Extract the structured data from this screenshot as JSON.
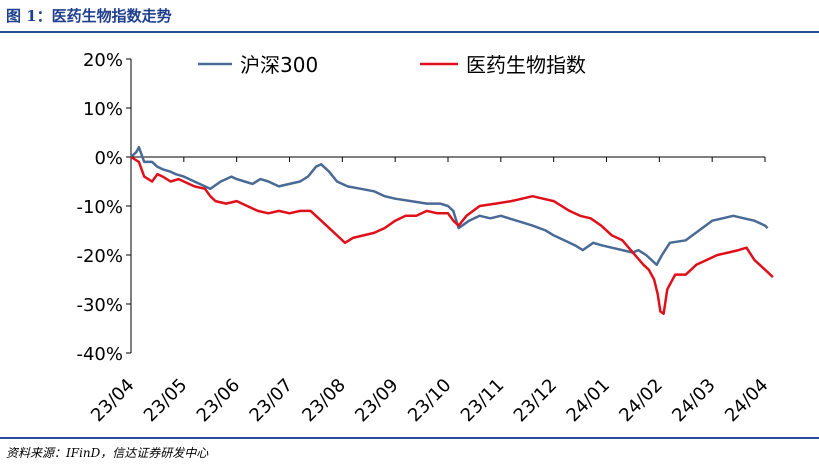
{
  "header": {
    "figure_title": "图 1：医药生物指数走势"
  },
  "footer": {
    "source": "资料来源：IFinD，信达证券研发中心"
  },
  "chart_data": {
    "type": "line",
    "title": "",
    "xlabel": "",
    "ylabel": "",
    "x_ticks": [
      "23/04",
      "23/05",
      "23/06",
      "23/07",
      "23/08",
      "23/09",
      "23/10",
      "23/11",
      "23/12",
      "24/01",
      "24/02",
      "24/03",
      "24/04"
    ],
    "y_ticks": [
      "20%",
      "10%",
      "0%",
      "-10%",
      "-20%",
      "-30%",
      "-40%"
    ],
    "ylim": [
      -40,
      20
    ],
    "grid": false,
    "legend_position": "top",
    "series": [
      {
        "name": "沪深300",
        "color": "#4a6a96",
        "points": [
          [
            0,
            0
          ],
          [
            0.1,
            1
          ],
          [
            0.15,
            2
          ],
          [
            0.25,
            -1
          ],
          [
            0.4,
            -1
          ],
          [
            0.5,
            -2
          ],
          [
            0.6,
            -2.5
          ],
          [
            0.75,
            -3
          ],
          [
            0.85,
            -3.5
          ],
          [
            1.0,
            -4
          ],
          [
            1.2,
            -5
          ],
          [
            1.4,
            -6
          ],
          [
            1.5,
            -6.5
          ],
          [
            1.7,
            -5
          ],
          [
            1.9,
            -4
          ],
          [
            2.0,
            -4.5
          ],
          [
            2.15,
            -5
          ],
          [
            2.3,
            -5.5
          ],
          [
            2.45,
            -4.5
          ],
          [
            2.6,
            -5
          ],
          [
            2.8,
            -6
          ],
          [
            3.0,
            -5.5
          ],
          [
            3.2,
            -5
          ],
          [
            3.35,
            -4
          ],
          [
            3.5,
            -2
          ],
          [
            3.6,
            -1.5
          ],
          [
            3.75,
            -3
          ],
          [
            3.9,
            -5
          ],
          [
            4.1,
            -6
          ],
          [
            4.35,
            -6.5
          ],
          [
            4.6,
            -7
          ],
          [
            4.8,
            -8
          ],
          [
            5.0,
            -8.5
          ],
          [
            5.3,
            -9
          ],
          [
            5.6,
            -9.5
          ],
          [
            5.85,
            -9.5
          ],
          [
            6.0,
            -10
          ],
          [
            6.1,
            -11
          ],
          [
            6.2,
            -14.5
          ],
          [
            6.4,
            -13
          ],
          [
            6.6,
            -12
          ],
          [
            6.8,
            -12.5
          ],
          [
            7.0,
            -12
          ],
          [
            7.3,
            -13
          ],
          [
            7.6,
            -14
          ],
          [
            7.85,
            -15
          ],
          [
            8.0,
            -16
          ],
          [
            8.2,
            -17
          ],
          [
            8.4,
            -18
          ],
          [
            8.55,
            -19
          ],
          [
            8.75,
            -17.5
          ],
          [
            8.9,
            -18
          ],
          [
            9.1,
            -18.5
          ],
          [
            9.3,
            -19
          ],
          [
            9.5,
            -19.5
          ],
          [
            9.6,
            -19
          ],
          [
            9.75,
            -20
          ],
          [
            9.85,
            -21
          ],
          [
            9.95,
            -22
          ],
          [
            10.05,
            -20
          ],
          [
            10.2,
            -17.5
          ],
          [
            10.5,
            -17
          ],
          [
            10.75,
            -15
          ],
          [
            11.0,
            -13
          ],
          [
            11.2,
            -12.5
          ],
          [
            11.4,
            -12
          ],
          [
            11.6,
            -12.5
          ],
          [
            11.8,
            -13
          ],
          [
            12.0,
            -14
          ],
          [
            12.05,
            -14.5
          ]
        ]
      },
      {
        "name": "医药生物指数",
        "color": "#e0101a",
        "points": [
          [
            0,
            0
          ],
          [
            0.15,
            -1
          ],
          [
            0.25,
            -4
          ],
          [
            0.4,
            -5
          ],
          [
            0.5,
            -3.5
          ],
          [
            0.6,
            -4
          ],
          [
            0.75,
            -5
          ],
          [
            0.9,
            -4.5
          ],
          [
            1.0,
            -5
          ],
          [
            1.2,
            -6
          ],
          [
            1.4,
            -6.5
          ],
          [
            1.5,
            -8
          ],
          [
            1.6,
            -9
          ],
          [
            1.8,
            -9.5
          ],
          [
            2.0,
            -9
          ],
          [
            2.2,
            -10
          ],
          [
            2.4,
            -11
          ],
          [
            2.6,
            -11.5
          ],
          [
            2.8,
            -11
          ],
          [
            3.0,
            -11.5
          ],
          [
            3.2,
            -11
          ],
          [
            3.4,
            -11
          ],
          [
            3.5,
            -12
          ],
          [
            3.7,
            -14
          ],
          [
            3.85,
            -15.5
          ],
          [
            3.95,
            -16.5
          ],
          [
            4.05,
            -17.5
          ],
          [
            4.2,
            -16.5
          ],
          [
            4.4,
            -16
          ],
          [
            4.6,
            -15.5
          ],
          [
            4.8,
            -14.5
          ],
          [
            5.0,
            -13
          ],
          [
            5.2,
            -12
          ],
          [
            5.4,
            -12
          ],
          [
            5.6,
            -11
          ],
          [
            5.8,
            -11.5
          ],
          [
            6.0,
            -11.5
          ],
          [
            6.1,
            -13
          ],
          [
            6.2,
            -14
          ],
          [
            6.35,
            -12
          ],
          [
            6.6,
            -10
          ],
          [
            6.9,
            -9.5
          ],
          [
            7.2,
            -9
          ],
          [
            7.4,
            -8.5
          ],
          [
            7.6,
            -8
          ],
          [
            7.8,
            -8.5
          ],
          [
            8.0,
            -9
          ],
          [
            8.15,
            -10
          ],
          [
            8.3,
            -11
          ],
          [
            8.5,
            -12
          ],
          [
            8.7,
            -12.5
          ],
          [
            8.9,
            -14
          ],
          [
            9.1,
            -16
          ],
          [
            9.3,
            -17
          ],
          [
            9.5,
            -19.5
          ],
          [
            9.7,
            -22
          ],
          [
            9.8,
            -23
          ],
          [
            9.9,
            -25
          ],
          [
            9.97,
            -28
          ],
          [
            10.02,
            -31.5
          ],
          [
            10.08,
            -32
          ],
          [
            10.15,
            -27
          ],
          [
            10.3,
            -24
          ],
          [
            10.5,
            -24
          ],
          [
            10.7,
            -22
          ],
          [
            10.9,
            -21
          ],
          [
            11.1,
            -20
          ],
          [
            11.3,
            -19.5
          ],
          [
            11.5,
            -19
          ],
          [
            11.65,
            -18.5
          ],
          [
            11.8,
            -21
          ],
          [
            11.95,
            -22.5
          ],
          [
            12.05,
            -23.5
          ],
          [
            12.15,
            -24.5
          ]
        ]
      }
    ]
  }
}
